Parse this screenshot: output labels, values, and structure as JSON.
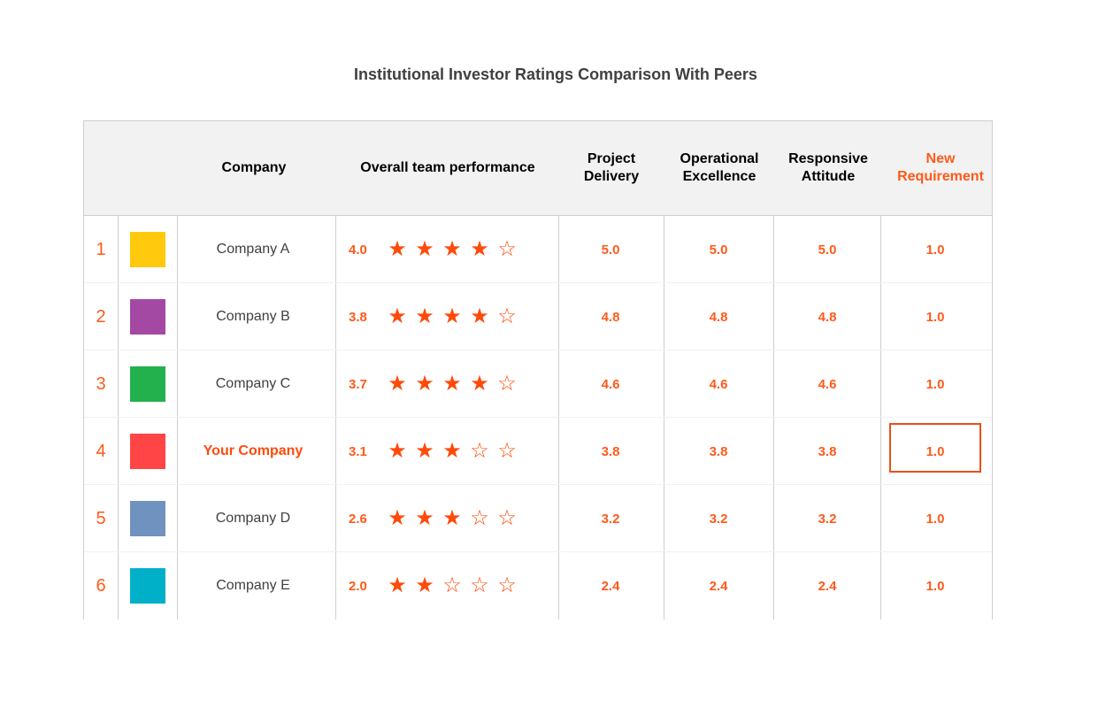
{
  "title": "Institutional Investor Ratings Comparison With Peers",
  "headers": {
    "company": "Company",
    "overall": "Overall team performance",
    "project_delivery": "Project\nDelivery",
    "operational_excellence": "Operational\nExcellence",
    "responsive_attitude": "Responsive\nAttitude",
    "new_requirement": "New\nRequirement"
  },
  "colors": {
    "accent": "#ff5a1a",
    "star": "#ff4a0a",
    "header_bg": "#f2f2f2",
    "highlight_border": "#e8501a"
  },
  "rows": [
    {
      "rank": "1",
      "color": "#ffc90e",
      "company": "Company A",
      "overall": "4.0",
      "stars_filled": 4,
      "project_delivery": "5.0",
      "operational_excellence": "5.0",
      "responsive_attitude": "5.0",
      "new_requirement": "1.0",
      "highlight": false
    },
    {
      "rank": "2",
      "color": "#a349a4",
      "company": "Company B",
      "overall": "3.8",
      "stars_filled": 4,
      "project_delivery": "4.8",
      "operational_excellence": "4.8",
      "responsive_attitude": "4.8",
      "new_requirement": "1.0",
      "highlight": false
    },
    {
      "rank": "3",
      "color": "#22b14c",
      "company": "Company C",
      "overall": "3.7",
      "stars_filled": 4,
      "project_delivery": "4.6",
      "operational_excellence": "4.6",
      "responsive_attitude": "4.6",
      "new_requirement": "1.0",
      "highlight": false
    },
    {
      "rank": "4",
      "color": "#ff4545",
      "company": "Your Company",
      "overall": "3.1",
      "stars_filled": 3,
      "project_delivery": "3.8",
      "operational_excellence": "3.8",
      "responsive_attitude": "3.8",
      "new_requirement": "1.0",
      "highlight": true
    },
    {
      "rank": "5",
      "color": "#7092be",
      "company": "Company D",
      "overall": "2.6",
      "stars_filled": 3,
      "project_delivery": "3.2",
      "operational_excellence": "3.2",
      "responsive_attitude": "3.2",
      "new_requirement": "1.0",
      "highlight": false
    },
    {
      "rank": "6",
      "color": "#00b0c8",
      "company": "Company E",
      "overall": "2.0",
      "stars_filled": 2,
      "project_delivery": "2.4",
      "operational_excellence": "2.4",
      "responsive_attitude": "2.4",
      "new_requirement": "1.0",
      "highlight": false
    }
  ]
}
